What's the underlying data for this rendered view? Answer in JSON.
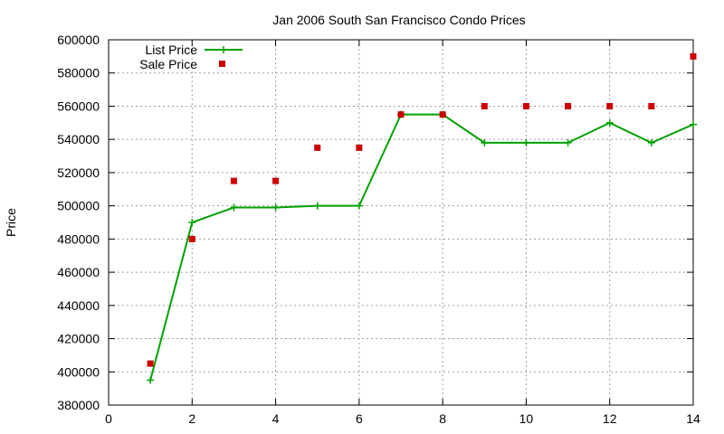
{
  "chart_data": {
    "type": "line",
    "title": "Jan 2006 South San Francisco Condo Prices",
    "xlabel": "",
    "ylabel": "Price",
    "xlim": [
      0,
      14
    ],
    "ylim": [
      380000,
      600000
    ],
    "xticks": [
      0,
      2,
      4,
      6,
      8,
      10,
      12,
      14
    ],
    "yticks": [
      380000,
      400000,
      420000,
      440000,
      460000,
      480000,
      500000,
      520000,
      540000,
      560000,
      580000,
      600000
    ],
    "grid": true,
    "legend_position": "top-left",
    "series": [
      {
        "name": "List Price",
        "kind": "line",
        "marker": "plus",
        "color": "#00a000",
        "x": [
          1,
          2,
          3,
          4,
          5,
          6,
          7,
          8,
          9,
          10,
          11,
          12,
          13,
          14
        ],
        "values": [
          395000,
          490000,
          499000,
          499000,
          500000,
          500000,
          555000,
          555000,
          538000,
          538000,
          538000,
          550000,
          538000,
          549000
        ]
      },
      {
        "name": "Sale Price",
        "kind": "scatter",
        "marker": "square",
        "color": "#cc0000",
        "x": [
          1,
          2,
          3,
          4,
          5,
          6,
          7,
          8,
          9,
          10,
          11,
          12,
          13,
          14
        ],
        "values": [
          405000,
          480000,
          515000,
          515000,
          535000,
          535000,
          555000,
          555000,
          560000,
          560000,
          560000,
          560000,
          560000,
          590000
        ]
      }
    ]
  }
}
